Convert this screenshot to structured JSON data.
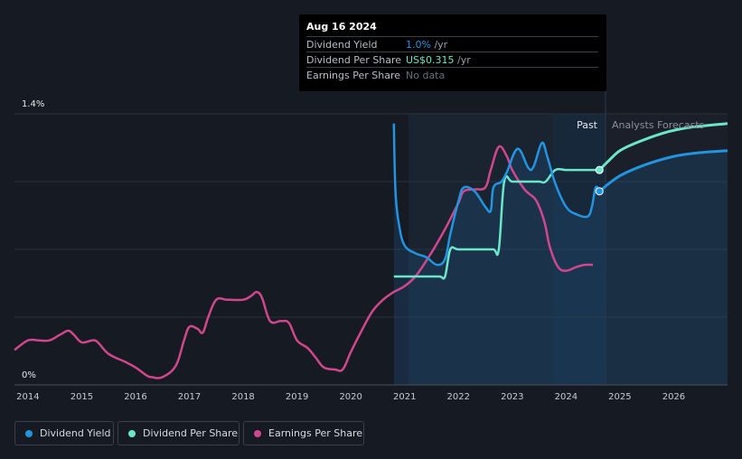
{
  "tooltip": {
    "date": "Aug 16 2024",
    "rows": [
      {
        "label": "Dividend Yield",
        "value": "1.0%",
        "unit": " /yr",
        "color": "#2394df"
      },
      {
        "label": "Dividend Per Share",
        "value": "US$0.315",
        "unit": " /yr",
        "color": "#6ce6cb"
      },
      {
        "label": "Earnings Per Share",
        "value": "No data",
        "unit": "",
        "color": "#6b7078"
      }
    ]
  },
  "regions": {
    "past_label": "Past",
    "forecast_label": "Analysts Forecasts"
  },
  "legend": [
    {
      "label": "Dividend Yield",
      "color": "#2394df"
    },
    {
      "label": "Dividend Per Share",
      "color": "#6ce6cb"
    },
    {
      "label": "Earnings Per Share",
      "color": "#d0478d"
    }
  ],
  "chart_data": {
    "type": "line",
    "y_ticks": [
      {
        "value": 1.4,
        "label": "1.4%"
      },
      {
        "value": 0,
        "label": "0%"
      }
    ],
    "x_ticks": [
      "2014",
      "2015",
      "2016",
      "2017",
      "2018",
      "2019",
      "2020",
      "2021",
      "2022",
      "2023",
      "2024",
      "2025",
      "2026"
    ],
    "xlim": [
      2013.75,
      2027.0
    ],
    "ylim": [
      0,
      1.4
    ],
    "past_end": 2024.62,
    "highlight_start": 2023.62,
    "series": [
      {
        "name": "Dividend Yield",
        "unit": "%",
        "color": "#2394df",
        "points": [
          [
            2020.8,
            1.35
          ],
          [
            2020.83,
            1.0
          ],
          [
            2020.9,
            0.82
          ],
          [
            2021.0,
            0.72
          ],
          [
            2021.2,
            0.68
          ],
          [
            2021.4,
            0.66
          ],
          [
            2021.6,
            0.62
          ],
          [
            2021.75,
            0.65
          ],
          [
            2021.85,
            0.78
          ],
          [
            2022.0,
            0.95
          ],
          [
            2022.1,
            1.02
          ],
          [
            2022.3,
            1.0
          ],
          [
            2022.5,
            0.92
          ],
          [
            2022.6,
            0.9
          ],
          [
            2022.65,
            1.02
          ],
          [
            2022.8,
            1.05
          ],
          [
            2022.9,
            1.1
          ],
          [
            2023.1,
            1.22
          ],
          [
            2023.3,
            1.12
          ],
          [
            2023.4,
            1.13
          ],
          [
            2023.55,
            1.25
          ],
          [
            2023.65,
            1.18
          ],
          [
            2023.8,
            1.04
          ],
          [
            2024.0,
            0.92
          ],
          [
            2024.2,
            0.88
          ],
          [
            2024.4,
            0.87
          ],
          [
            2024.48,
            0.92
          ],
          [
            2024.55,
            1.02
          ],
          [
            2024.62,
            1.0
          ]
        ],
        "forecast": [
          [
            2024.62,
            1.0
          ],
          [
            2025.0,
            1.08
          ],
          [
            2025.5,
            1.14
          ],
          [
            2026.0,
            1.18
          ],
          [
            2026.5,
            1.2
          ],
          [
            2027.0,
            1.21
          ]
        ]
      },
      {
        "name": "Dividend Per Share",
        "unit": "%",
        "color": "#6ce6cb",
        "points": [
          [
            2020.8,
            0.56
          ],
          [
            2021.0,
            0.56
          ],
          [
            2021.4,
            0.56
          ],
          [
            2021.65,
            0.56
          ],
          [
            2021.75,
            0.56
          ],
          [
            2021.85,
            0.7
          ],
          [
            2022.0,
            0.7
          ],
          [
            2022.4,
            0.7
          ],
          [
            2022.65,
            0.7
          ],
          [
            2022.75,
            0.7
          ],
          [
            2022.85,
            1.05
          ],
          [
            2023.0,
            1.05
          ],
          [
            2023.3,
            1.05
          ],
          [
            2023.5,
            1.05
          ],
          [
            2023.62,
            1.05
          ],
          [
            2023.8,
            1.11
          ],
          [
            2024.0,
            1.11
          ],
          [
            2024.3,
            1.11
          ],
          [
            2024.62,
            1.11
          ]
        ],
        "forecast": [
          [
            2024.62,
            1.11
          ],
          [
            2024.8,
            1.16
          ],
          [
            2025.0,
            1.21
          ],
          [
            2025.3,
            1.25
          ],
          [
            2025.8,
            1.3
          ],
          [
            2026.3,
            1.33
          ],
          [
            2027.0,
            1.35
          ]
        ]
      },
      {
        "name": "Earnings Per Share",
        "unit": "%",
        "color": "#d0478d",
        "points": [
          [
            2013.75,
            0.18
          ],
          [
            2014.0,
            0.23
          ],
          [
            2014.2,
            0.23
          ],
          [
            2014.4,
            0.23
          ],
          [
            2014.6,
            0.26
          ],
          [
            2014.75,
            0.28
          ],
          [
            2014.85,
            0.26
          ],
          [
            2015.0,
            0.22
          ],
          [
            2015.2,
            0.23
          ],
          [
            2015.3,
            0.22
          ],
          [
            2015.5,
            0.16
          ],
          [
            2015.8,
            0.12
          ],
          [
            2016.0,
            0.09
          ],
          [
            2016.2,
            0.05
          ],
          [
            2016.3,
            0.04
          ],
          [
            2016.5,
            0.04
          ],
          [
            2016.75,
            0.1
          ],
          [
            2016.9,
            0.23
          ],
          [
            2017.0,
            0.3
          ],
          [
            2017.15,
            0.29
          ],
          [
            2017.25,
            0.27
          ],
          [
            2017.35,
            0.35
          ],
          [
            2017.5,
            0.44
          ],
          [
            2017.7,
            0.44
          ],
          [
            2018.0,
            0.44
          ],
          [
            2018.15,
            0.46
          ],
          [
            2018.25,
            0.48
          ],
          [
            2018.35,
            0.45
          ],
          [
            2018.5,
            0.33
          ],
          [
            2018.7,
            0.33
          ],
          [
            2018.85,
            0.32
          ],
          [
            2019.0,
            0.23
          ],
          [
            2019.2,
            0.19
          ],
          [
            2019.35,
            0.14
          ],
          [
            2019.5,
            0.09
          ],
          [
            2019.7,
            0.08
          ],
          [
            2019.85,
            0.08
          ],
          [
            2020.0,
            0.17
          ],
          [
            2020.2,
            0.28
          ],
          [
            2020.4,
            0.38
          ],
          [
            2020.6,
            0.44
          ],
          [
            2020.8,
            0.48
          ],
          [
            2021.0,
            0.51
          ],
          [
            2021.2,
            0.56
          ],
          [
            2021.4,
            0.64
          ],
          [
            2021.6,
            0.73
          ],
          [
            2021.8,
            0.83
          ],
          [
            2022.0,
            0.94
          ],
          [
            2022.1,
            1.0
          ],
          [
            2022.3,
            1.01
          ],
          [
            2022.5,
            1.02
          ],
          [
            2022.6,
            1.11
          ],
          [
            2022.75,
            1.23
          ],
          [
            2022.9,
            1.18
          ],
          [
            2023.0,
            1.11
          ],
          [
            2023.2,
            1.02
          ],
          [
            2023.3,
            0.99
          ],
          [
            2023.45,
            0.95
          ],
          [
            2023.6,
            0.84
          ],
          [
            2023.7,
            0.71
          ],
          [
            2023.85,
            0.61
          ],
          [
            2024.0,
            0.59
          ],
          [
            2024.2,
            0.61
          ],
          [
            2024.35,
            0.62
          ],
          [
            2024.5,
            0.62
          ]
        ],
        "forecast": []
      }
    ]
  }
}
